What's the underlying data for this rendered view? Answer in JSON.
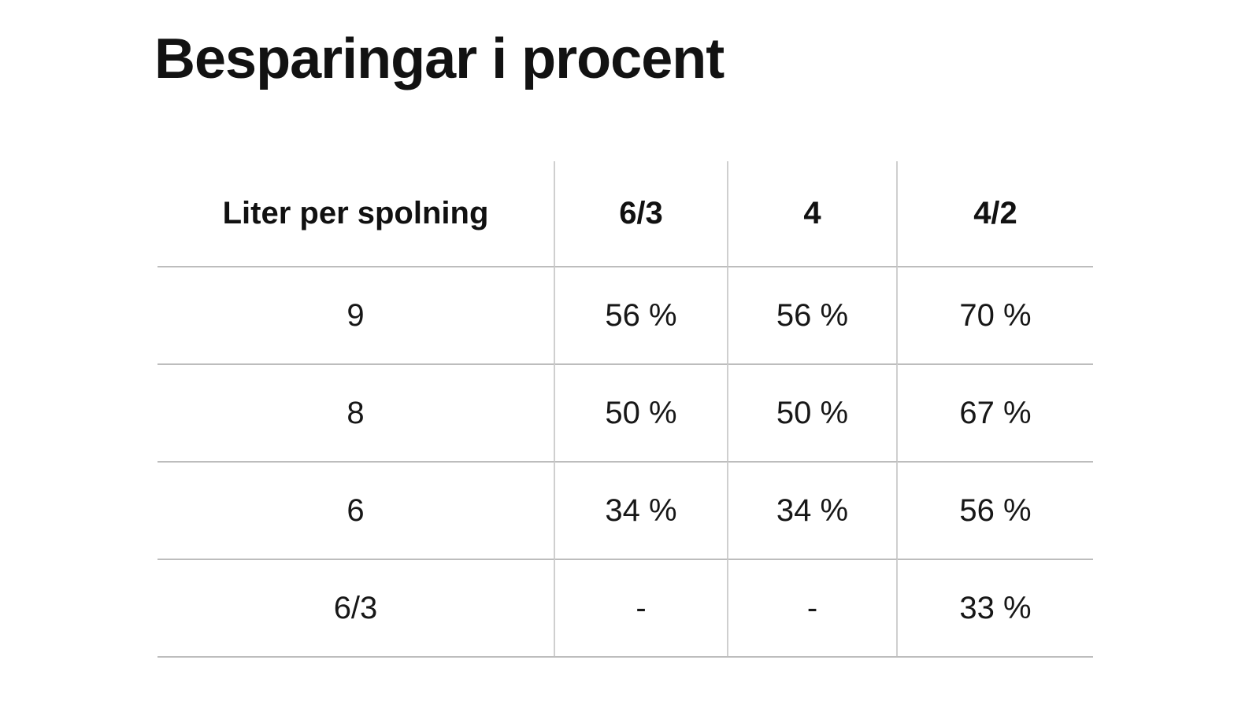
{
  "title": "Besparingar i procent",
  "chart_data": {
    "type": "table",
    "title": "Besparingar i procent",
    "columns": [
      "Liter per spolning",
      "6/3",
      "4",
      "4/2"
    ],
    "rows": [
      [
        "9",
        "56 %",
        "56 %",
        "70 %"
      ],
      [
        "8",
        "50 %",
        "50 %",
        "67 %"
      ],
      [
        "6",
        "34 %",
        "34 %",
        "56 %"
      ],
      [
        "6/3",
        "-",
        "-",
        "33 %"
      ]
    ],
    "layout": {
      "header_bold": true,
      "cell_alignment": "center",
      "separators": "vertical column lines and horizontal row lines, no outer side borders"
    },
    "colors": {
      "background": "#ffffff",
      "text": "#171717",
      "row_line": "#bdbdbd",
      "column_line": "#cfcfcf"
    }
  }
}
